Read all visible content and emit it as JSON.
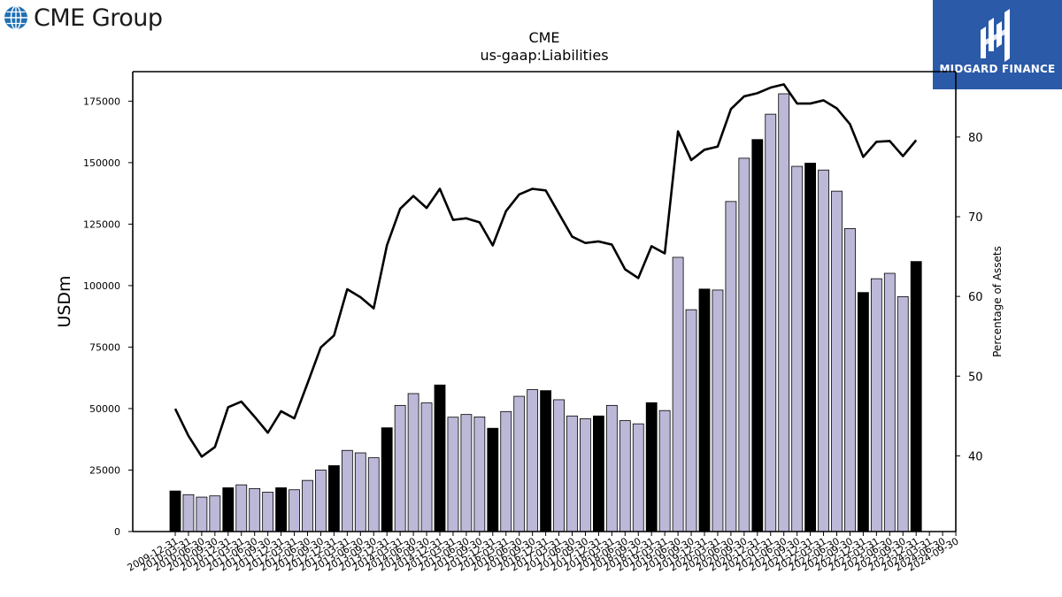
{
  "branding": {
    "left_logo_text": "CME Group",
    "right_logo_text": "MIDGARD FINANCE"
  },
  "chart_data": {
    "type": "bar",
    "title": "CME",
    "subtitle": "us-gaap:Liabilities",
    "ylabel": "USDm",
    "y2label": "Percentage of Assets",
    "ylim": [
      0,
      187000
    ],
    "y2lim": [
      30.5,
      88.2
    ],
    "yticks": [
      0,
      25000,
      50000,
      75000,
      100000,
      125000,
      150000,
      175000
    ],
    "y2ticks": [
      40,
      50,
      60,
      70,
      80
    ],
    "colors": {
      "annual_bar": "#000000",
      "quarter_bar": "#bcb8d8",
      "line": "#000000"
    },
    "categories": [
      "2009-12-31",
      "2010-03-31",
      "2010-06-30",
      "2010-09-30",
      "2010-12-31",
      "2011-03-31",
      "2011-06-30",
      "2011-09-30",
      "2011-12-31",
      "2012-03-31",
      "2012-06-30",
      "2012-09-30",
      "2012-12-31",
      "2013-03-31",
      "2013-06-30",
      "2013-09-30",
      "2013-12-31",
      "2014-03-31",
      "2014-06-30",
      "2014-09-30",
      "2014-12-31",
      "2015-03-31",
      "2015-06-30",
      "2015-09-30",
      "2015-12-31",
      "2016-03-31",
      "2016-06-30",
      "2016-09-30",
      "2016-12-31",
      "2017-03-31",
      "2017-06-30",
      "2017-09-30",
      "2017-12-31",
      "2018-03-31",
      "2018-06-30",
      "2018-09-30",
      "2018-12-31",
      "2019-03-31",
      "2019-06-30",
      "2019-09-30",
      "2019-12-31",
      "2020-03-31",
      "2020-06-30",
      "2020-09-30",
      "2020-12-31",
      "2021-03-31",
      "2021-06-30",
      "2021-09-30",
      "2021-12-31",
      "2022-03-31",
      "2022-06-30",
      "2022-09-30",
      "2022-12-31",
      "2023-03-31",
      "2023-06-30",
      "2023-09-30",
      "2023-12-31",
      "2024-03-31",
      "2024-06-30",
      "2024-09-30"
    ],
    "annual": [
      true,
      false,
      false,
      false,
      true,
      false,
      false,
      false,
      true,
      false,
      false,
      false,
      true,
      false,
      false,
      false,
      true,
      false,
      false,
      false,
      true,
      false,
      false,
      false,
      true,
      false,
      false,
      false,
      true,
      false,
      false,
      false,
      true,
      false,
      false,
      false,
      true,
      false,
      false,
      false,
      true,
      false,
      false,
      false,
      true,
      false,
      false,
      false,
      true,
      false,
      false,
      false,
      true,
      false,
      false,
      false,
      true,
      false,
      false,
      false
    ],
    "series": [
      {
        "name": "Liabilities",
        "type": "bar",
        "values": [
          16500,
          15000,
          14000,
          14500,
          17800,
          19000,
          17500,
          16000,
          17800,
          17000,
          20800,
          25000,
          26800,
          33000,
          32000,
          30000,
          42200,
          51300,
          56100,
          52300,
          59600,
          46500,
          47600,
          46600,
          42000,
          48800,
          55000,
          57700,
          57300,
          53600,
          47000,
          45900,
          47000,
          51300,
          45100,
          43800,
          52400,
          49200,
          111500,
          90200,
          98600,
          98200,
          134200,
          151800,
          159400,
          169700,
          178000,
          148500,
          149800,
          147000,
          138400,
          123200,
          97200,
          102800,
          105000,
          95500,
          109800,
          null,
          null,
          null
        ]
      },
      {
        "name": "Percentage of Assets",
        "type": "line",
        "axis": "right",
        "values": [
          45.9,
          42.5,
          39.9,
          41.1,
          46.1,
          46.8,
          44.9,
          42.9,
          45.6,
          44.7,
          49.1,
          53.6,
          55.1,
          60.9,
          59.9,
          58.5,
          66.4,
          71.0,
          72.6,
          71.1,
          73.5,
          69.6,
          69.8,
          69.3,
          66.4,
          70.7,
          72.8,
          73.5,
          73.3,
          70.4,
          67.5,
          66.7,
          66.9,
          66.5,
          63.4,
          62.3,
          66.3,
          65.4,
          80.7,
          77.1,
          78.4,
          78.8,
          83.5,
          85.1,
          85.5,
          86.2,
          86.6,
          84.2,
          84.2,
          84.6,
          83.6,
          81.6,
          77.5,
          79.4,
          79.5,
          77.6,
          79.6,
          null,
          null,
          null
        ]
      }
    ]
  }
}
